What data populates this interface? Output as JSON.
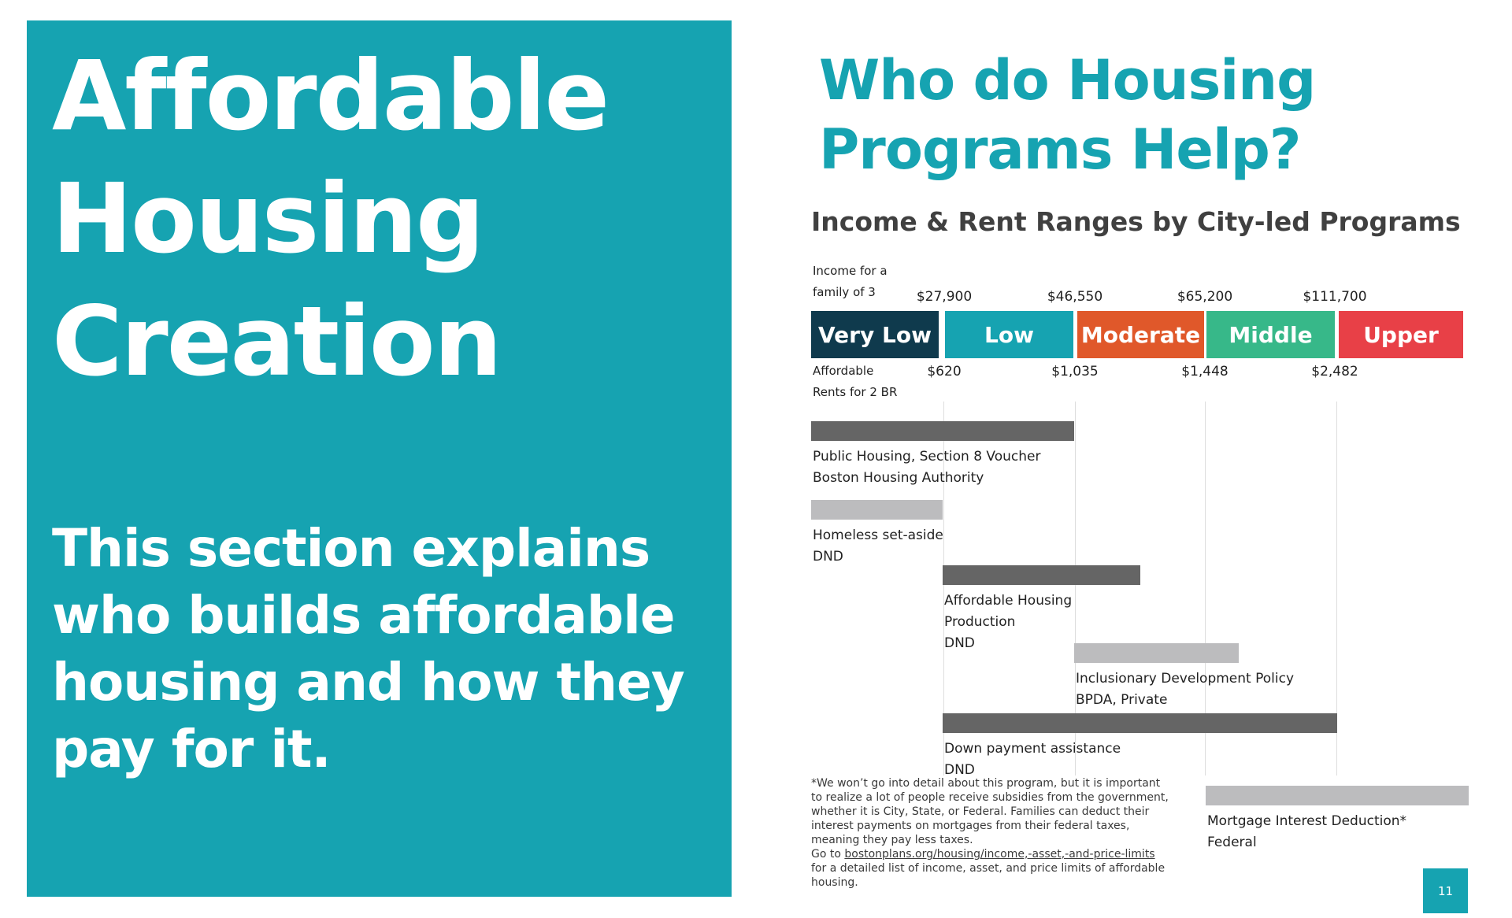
{
  "left_panel": {
    "title_lines": [
      "Affordable",
      "Housing",
      "Creation"
    ],
    "intro_lines": [
      "This section explains",
      "who builds affordable",
      "housing and how they",
      "pay for it."
    ],
    "background_color": "#16a3b1"
  },
  "right": {
    "title_lines": [
      "Who do Housing",
      "Programs Help?"
    ],
    "chart_heading": "Income & Rent Ranges by City-led Programs",
    "income_label_lines": [
      "Income for a",
      "family of 3"
    ],
    "rent_label_lines": [
      "Affordable",
      "Rents for 2 BR"
    ],
    "footnote_lines": [
      "*We won’t go into detail about this program, but it is important",
      "to realize a lot of people receive subsidies from the government,",
      "whether it is City, State, or Federal. Families can deduct their",
      "interest payments on mortgages from their federal taxes,",
      "meaning they pay less taxes."
    ],
    "footnote_link_prefix": "Go to ",
    "footnote_link_text": "bostonplans.org/housing/income,-asset,-and-price-limits",
    "footnote_tail_lines": [
      "for a detailed list of income, asset, and price limits of affordable",
      "housing."
    ],
    "page_number": "11"
  },
  "chart_data": {
    "type": "bar",
    "title": "Income & Rent Ranges by City-led Programs",
    "income_thresholds": [
      "$27,900",
      "$46,550",
      "$65,200",
      "$111,700"
    ],
    "rent_thresholds": [
      "$620",
      "$1,035",
      "$1,448",
      "$2,482"
    ],
    "categories": [
      "Very Low",
      "Low",
      "Moderate",
      "Middle",
      "Upper"
    ],
    "category_colors": [
      "#0f3a4d",
      "#16a3b1",
      "#e0582a",
      "#37b889",
      "#e84047"
    ],
    "programs": [
      {
        "lines": [
          "Public Housing, Section 8 Voucher",
          "Boston Housing Authority"
        ],
        "start": 0,
        "end": 2,
        "shade": "dark"
      },
      {
        "lines": [
          "Homeless set-aside",
          "DND"
        ],
        "start": 0,
        "end": 1,
        "shade": "light"
      },
      {
        "lines": [
          "Affordable Housing",
          "Production",
          "DND"
        ],
        "start": 1,
        "end": 2.5,
        "shade": "dark"
      },
      {
        "lines": [
          "Inclusionary Development Policy",
          "BPDA, Private"
        ],
        "start": 2,
        "end": 3.25,
        "shade": "light"
      },
      {
        "lines": [
          "Down payment assistance",
          "DND"
        ],
        "start": 1,
        "end": 4,
        "shade": "dark"
      },
      {
        "lines": [
          "Mortgage Interest Deduction*",
          "Federal"
        ],
        "start": 3,
        "end": 5,
        "shade": "light"
      }
    ],
    "shade_colors": {
      "dark": "#656565",
      "light": "#bcbcbe"
    }
  }
}
